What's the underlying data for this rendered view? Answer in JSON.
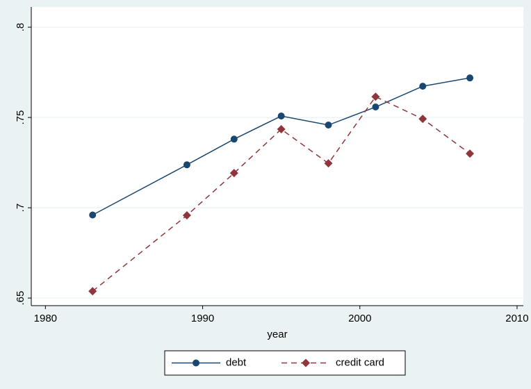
{
  "chart_data": {
    "type": "line",
    "x_label": "year",
    "x": [
      1983,
      1989,
      1992,
      1995,
      1998,
      2001,
      2004,
      2007
    ],
    "series": [
      {
        "name": "debt",
        "color": "#1a476f",
        "marker": "circle",
        "dash": false,
        "values": [
          0.696,
          0.7238,
          0.738,
          0.7508,
          0.7458,
          0.7558,
          0.7673,
          0.7719
        ]
      },
      {
        "name": "credit card",
        "color": "#90353b",
        "marker": "diamond",
        "dash": true,
        "values": [
          0.6538,
          0.6958,
          0.7192,
          0.7435,
          0.7246,
          0.7615,
          0.7492,
          0.73
        ]
      }
    ],
    "xlim": [
      1979.1,
      2010.4
    ],
    "xticks": [
      1980,
      1990,
      2000,
      2010
    ],
    "ylim": [
      0.6458,
      0.8112
    ],
    "yticks": [
      {
        "value": 0.65,
        "label": ".65"
      },
      {
        "value": 0.7,
        "label": ".7"
      },
      {
        "value": 0.75,
        "label": ".75"
      },
      {
        "value": 0.8,
        "label": ".8"
      }
    ],
    "grid": true,
    "legend": "bottom"
  }
}
